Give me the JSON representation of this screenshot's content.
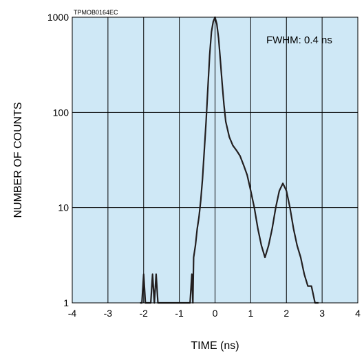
{
  "chart_data": {
    "type": "line",
    "figure_id": "TPMOB0164EC",
    "title": "",
    "xlabel": "TIME (ns)",
    "ylabel": "NUMBER OF COUNTS",
    "xlim": [
      -4,
      4
    ],
    "ylim": [
      1,
      1000
    ],
    "yscale": "log",
    "x_ticks": [
      -4,
      -3,
      -2,
      -1,
      0,
      1,
      2,
      3,
      4
    ],
    "x_tick_labels": [
      "-4",
      "-3",
      "-2",
      "-1",
      "0",
      "1",
      "2",
      "3",
      "4"
    ],
    "y_ticks": [
      1,
      10,
      100,
      1000
    ],
    "y_tick_labels": [
      "1",
      "10",
      "100",
      "1000"
    ],
    "grid": true,
    "background_color": "#cfe8f6",
    "line_color": "#231f20",
    "annotation": "FWHM: 0.4 ns",
    "series": [
      {
        "x": [
          -2.1,
          -2.05,
          -2.0,
          -1.95,
          -1.9,
          -1.8,
          -1.75,
          -1.7,
          -1.65,
          -1.6,
          -1.5,
          -1.4,
          -1.0,
          -0.7,
          -0.65,
          -0.62,
          -0.6,
          -0.55,
          -0.5,
          -0.45,
          -0.4,
          -0.35,
          -0.3,
          -0.25,
          -0.2,
          -0.15,
          -0.1,
          -0.05,
          0.0,
          0.05,
          0.1,
          0.15,
          0.2,
          0.25,
          0.3,
          0.4,
          0.5,
          0.6,
          0.7,
          0.8,
          0.9,
          1.0,
          1.1,
          1.2,
          1.3,
          1.4,
          1.5,
          1.6,
          1.7,
          1.8,
          1.9,
          2.0,
          2.1,
          2.2,
          2.3,
          2.4,
          2.5,
          2.6,
          2.7,
          2.8,
          2.9
        ],
        "y": [
          1,
          1,
          2,
          1,
          1,
          1,
          2,
          1,
          2,
          1,
          1,
          1,
          1,
          1,
          2,
          1,
          3,
          4,
          6,
          8,
          12,
          20,
          40,
          80,
          180,
          400,
          700,
          900,
          1000,
          850,
          600,
          350,
          200,
          120,
          80,
          55,
          45,
          40,
          35,
          28,
          22,
          15,
          10,
          6,
          4,
          3,
          4,
          6,
          10,
          15,
          18,
          15,
          10,
          6,
          4,
          3,
          2,
          1.5,
          1.5,
          1,
          1
        ]
      }
    ]
  }
}
